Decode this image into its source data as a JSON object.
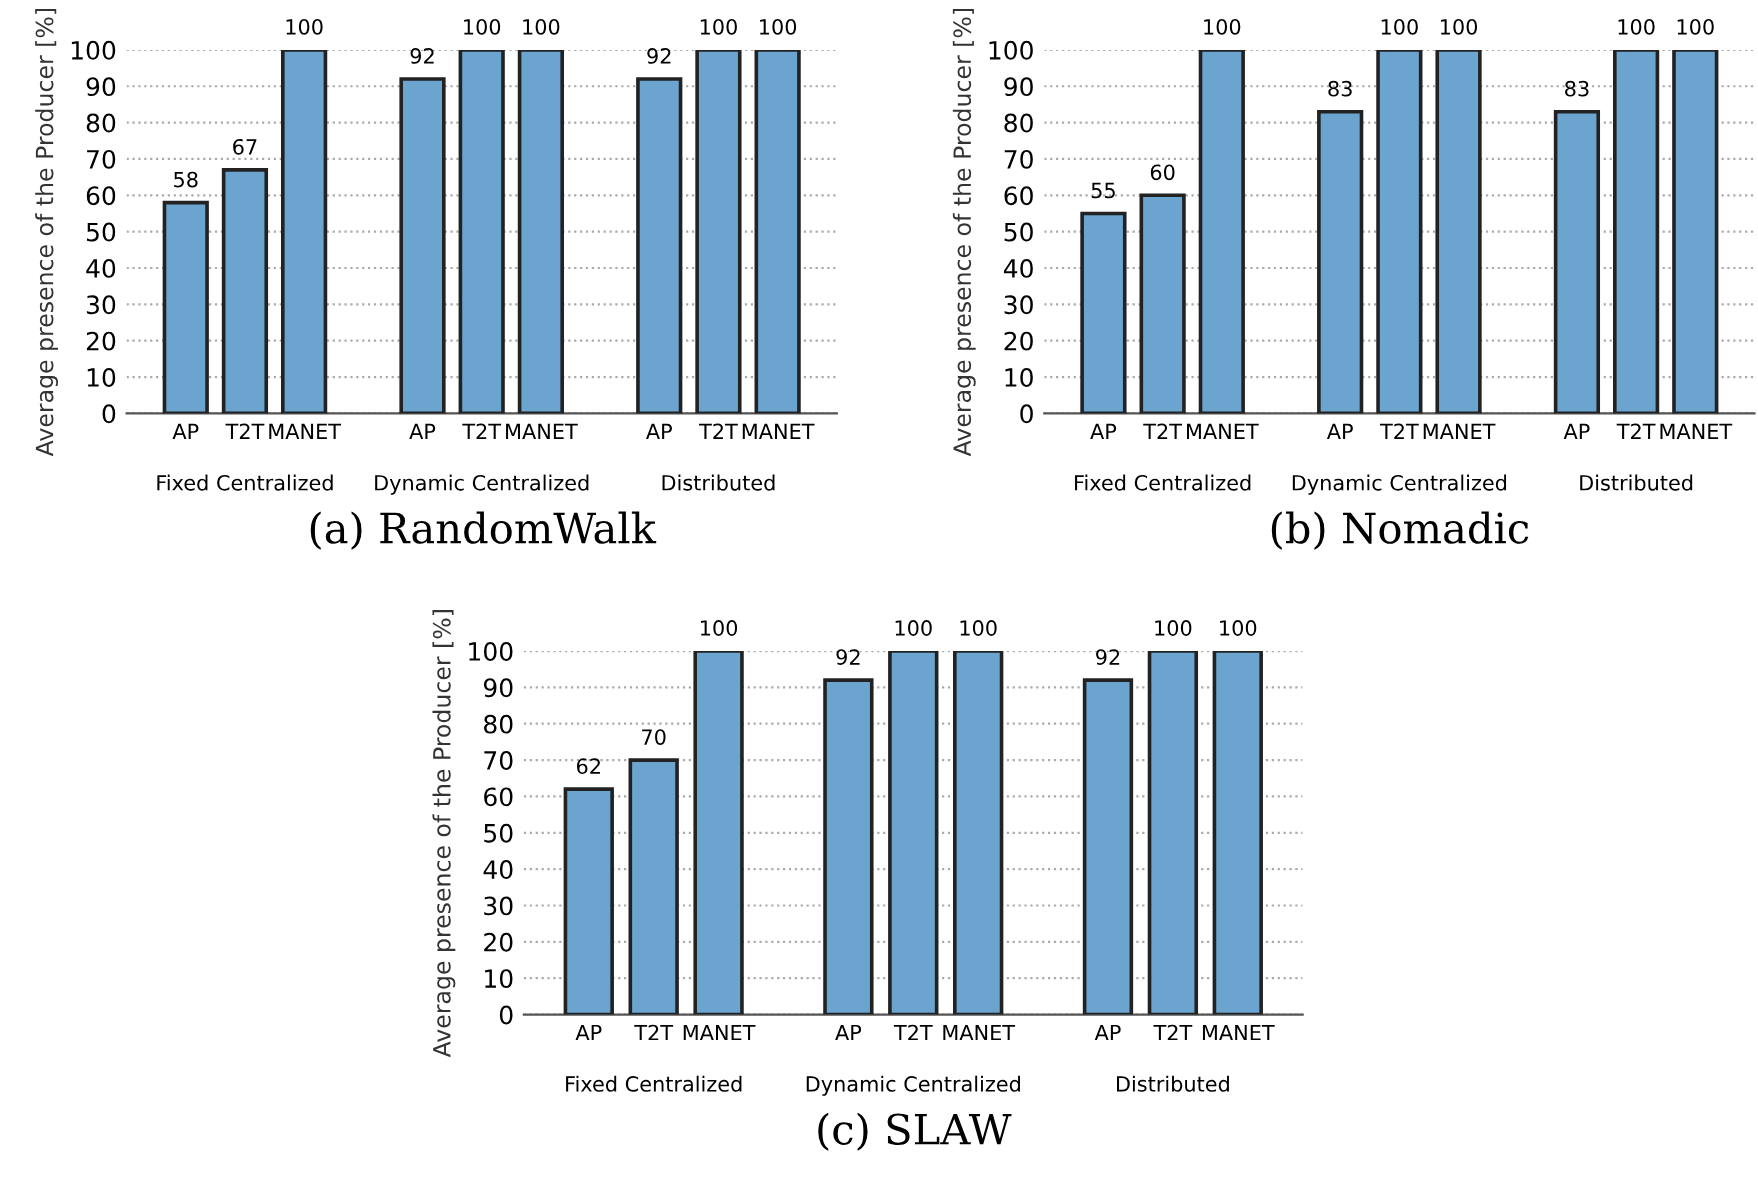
{
  "chart_data": [
    {
      "type": "bar",
      "title": "(a) RandomWalk",
      "ylabel": "Average presence of the Producer [%]",
      "categories": [
        "AP",
        "T2T",
        "MANET",
        "AP",
        "T2T",
        "MANET",
        "AP",
        "T2T",
        "MANET"
      ],
      "values": [
        58,
        67,
        100,
        92,
        100,
        100,
        92,
        100,
        100
      ],
      "color": "#6aa4cf",
      "ylim": [
        0,
        100
      ],
      "yticks": [
        0,
        10,
        20,
        30,
        40,
        50,
        60,
        70,
        80,
        90,
        100
      ],
      "grid": "y",
      "data_labels": true,
      "annotations": [
        "Fixed Centralized",
        "Dynamic Centralized",
        "Distributed"
      ]
    },
    {
      "type": "bar",
      "title": "(b) Nomadic",
      "ylabel": "Average presence of the Producer [%]",
      "categories": [
        "AP",
        "T2T",
        "MANET",
        "AP",
        "T2T",
        "MANET",
        "AP",
        "T2T",
        "MANET"
      ],
      "values": [
        55,
        60,
        100,
        83,
        100,
        100,
        83,
        100,
        100
      ],
      "color": "#6aa4cf",
      "ylim": [
        0,
        100
      ],
      "yticks": [
        0,
        10,
        20,
        30,
        40,
        50,
        60,
        70,
        80,
        90,
        100
      ],
      "grid": "y",
      "data_labels": true,
      "annotations": [
        "Fixed Centralized",
        "Dynamic Centralized",
        "Distributed"
      ]
    },
    {
      "type": "bar",
      "title": "(c) SLAW",
      "ylabel": "Average presence of the Producer [%]",
      "categories": [
        "AP",
        "T2T",
        "MANET",
        "AP",
        "T2T",
        "MANET",
        "AP",
        "T2T",
        "MANET"
      ],
      "values": [
        62,
        70,
        100,
        92,
        100,
        100,
        92,
        100,
        100
      ],
      "color": "#6aa4cf",
      "ylim": [
        0,
        100
      ],
      "yticks": [
        0,
        10,
        20,
        30,
        40,
        50,
        60,
        70,
        80,
        90,
        100
      ],
      "grid": "y",
      "data_labels": true,
      "annotations": [
        "Fixed Centralized",
        "Dynamic Centralized",
        "Distributed"
      ]
    }
  ]
}
